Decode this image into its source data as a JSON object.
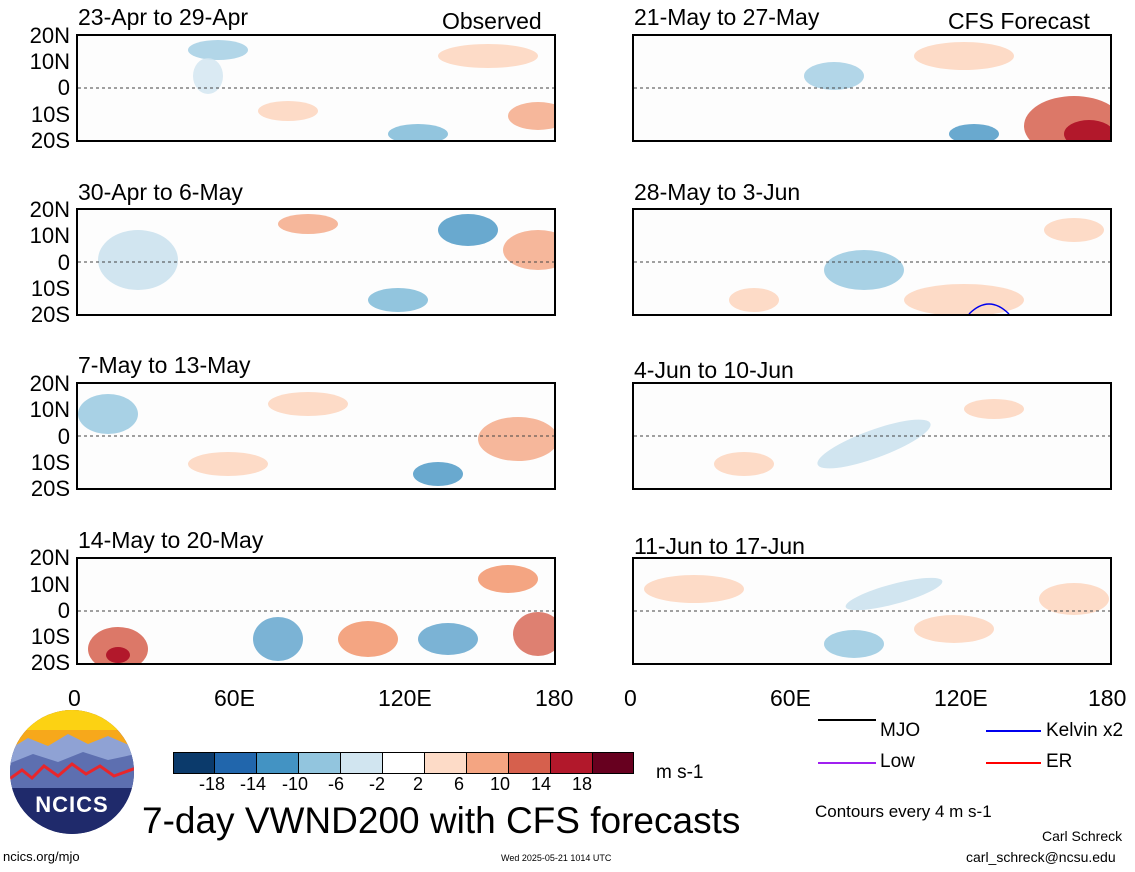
{
  "left_panel_titles": [
    "23-Apr to 29-Apr",
    "30-Apr to 6-May",
    "7-May to 13-May",
    "14-May to 20-May"
  ],
  "right_panel_titles": [
    "21-May to 27-May",
    "28-May to 3-Jun",
    "4-Jun to 10-Jun",
    "11-Jun to 17-Jun"
  ],
  "left_tag": "Observed",
  "right_tag": "CFS Forecast",
  "lat_labels": [
    "20N",
    "10N",
    "0",
    "10S",
    "20S"
  ],
  "lon_labels": [
    "0",
    "60E",
    "120E",
    "180"
  ],
  "colorbar": {
    "colors": [
      "#0b3a6b",
      "#2166ac",
      "#4393c3",
      "#92c5de",
      "#d1e5f0",
      "#ffffff",
      "#fddbc7",
      "#f4a582",
      "#d6604d",
      "#b2182b",
      "#67001f"
    ],
    "tick_labels": [
      "-18",
      "-14",
      "-10",
      "-6",
      "-2",
      "2",
      "6",
      "10",
      "14",
      "18"
    ],
    "units": "m s-1"
  },
  "legend": {
    "items": [
      {
        "label": "MJO",
        "color": "#000000"
      },
      {
        "label": "Kelvin x2",
        "color": "#0000ee"
      },
      {
        "label": "Low",
        "color": "#a020f0"
      },
      {
        "label": "ER",
        "color": "#ff0000"
      }
    ],
    "note": "Contours every 4 m s-1"
  },
  "logo_text": "NCICS",
  "main_title": "7-day VWND200 with CFS forecasts",
  "footer": {
    "url": "ncics.org/mjo",
    "timestamp": "Wed 2025-05-21 1014 UTC",
    "author": "Carl Schreck",
    "email": "carl_schreck@ncsu.edu"
  }
}
